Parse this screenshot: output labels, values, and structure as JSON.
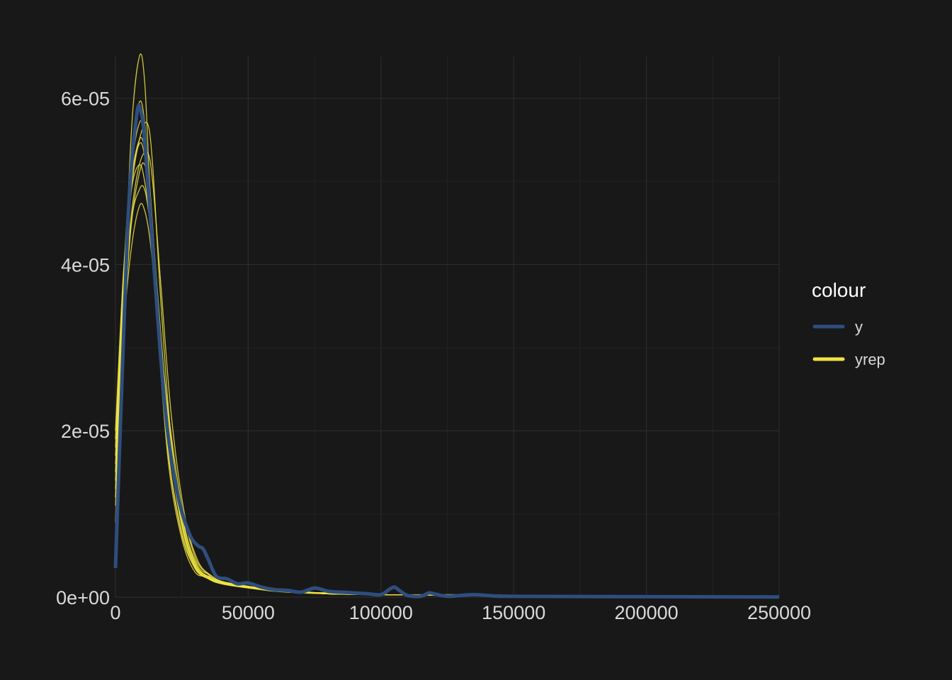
{
  "chart_data": {
    "type": "line",
    "title": "",
    "xlabel": "",
    "ylabel": "",
    "xlim": [
      0,
      250000
    ],
    "ylim": [
      0,
      6.5e-05
    ],
    "grid": true,
    "x_ticks": [
      0,
      50000,
      100000,
      150000,
      200000,
      250000
    ],
    "x_tick_labels": [
      "0",
      "50000",
      "100000",
      "150000",
      "200000",
      "250000"
    ],
    "y_ticks": [
      0,
      2e-05,
      4e-05,
      6e-05
    ],
    "y_tick_labels": [
      "0e+00",
      "2e-05",
      "4e-05",
      "6e-05"
    ],
    "legend": {
      "title": "colour",
      "position": "right",
      "entries": [
        {
          "label": "y",
          "color": "#2e4e7e"
        },
        {
          "label": "yrep",
          "color": "#f0e442"
        }
      ]
    },
    "series": [
      {
        "name": "y",
        "color": "#2e4e7e",
        "x": [
          0,
          2000,
          5000,
          8000,
          9500,
          11000,
          14000,
          17000,
          20000,
          24000,
          28000,
          31000,
          33000,
          35000,
          38000,
          42000,
          46000,
          50000,
          55000,
          60000,
          65000,
          70000,
          75000,
          80000,
          85000,
          90000,
          95000,
          100000,
          103000,
          105000,
          107000,
          110000,
          115000,
          118000,
          120000,
          125000,
          130000,
          135000,
          140000,
          145000,
          150000,
          200000,
          250000
        ],
        "y": [
          3.5e-06,
          2.2e-05,
          4.7e-05,
          5.8e-05,
          5.85e-05,
          5.5e-05,
          4.2e-05,
          2.9e-05,
          1.9e-05,
          1.15e-05,
          7.5e-06,
          6.2e-06,
          5.8e-06,
          4.5e-06,
          2.5e-06,
          2.2e-06,
          1.6e-06,
          1.7e-06,
          1.2e-06,
          9e-07,
          8e-07,
          6e-07,
          1.1e-06,
          7e-07,
          6e-07,
          5e-07,
          4e-07,
          3e-07,
          9e-07,
          1.2e-06,
          8e-07,
          2e-07,
          1e-07,
          5e-07,
          4e-07,
          1e-07,
          2e-07,
          3e-07,
          2e-07,
          1e-07,
          1e-07,
          5e-08,
          2e-08
        ]
      },
      {
        "name": "yrep",
        "color": "#f0e442",
        "x": [
          0,
          3000,
          6000,
          9000,
          11000,
          13000,
          16000,
          20000,
          25000,
          30000,
          35000,
          40000,
          50000,
          60000,
          70000,
          80000,
          100000,
          130000,
          160000,
          200000,
          250000
        ],
        "y": [
          9e-06,
          3.4e-05,
          5.6e-05,
          6.5e-05,
          6.2e-05,
          4.9e-05,
          3.3e-05,
          1.7e-05,
          7.5e-06,
          3.5e-06,
          2.2e-06,
          1.6e-06,
          1.1e-06,
          7e-07,
          5e-07,
          4e-07,
          3e-07,
          2e-07,
          2e-07,
          1e-07,
          1e-07
        ]
      },
      {
        "name": "yrep",
        "color": "#f0e442",
        "x": [
          0,
          3000,
          6000,
          9000,
          11000,
          13000,
          16000,
          20000,
          25000,
          30000,
          35000,
          40000,
          50000,
          60000,
          70000,
          80000,
          100000,
          130000,
          160000,
          200000,
          250000
        ],
        "y": [
          1.5e-05,
          3.8e-05,
          5.3e-05,
          5.95e-05,
          5.7e-05,
          4.8e-05,
          3.2e-05,
          1.6e-05,
          7e-06,
          3e-06,
          2.5e-06,
          1.8e-06,
          1.2e-06,
          8e-07,
          6e-07,
          5e-07,
          3e-07,
          3e-07,
          2e-07,
          2e-07,
          1e-07
        ]
      },
      {
        "name": "yrep",
        "color": "#f0e442",
        "x": [
          0,
          3000,
          6000,
          9000,
          12000,
          14000,
          17000,
          21000,
          26000,
          31000,
          36000,
          40000,
          50000,
          60000,
          70000,
          80000,
          100000,
          130000,
          160000,
          200000,
          250000
        ],
        "y": [
          1.8e-05,
          3.7e-05,
          4.9e-05,
          5.5e-05,
          5.7e-05,
          5.2e-05,
          3.6e-05,
          1.9e-05,
          8.5e-06,
          3.8e-06,
          2.6e-06,
          1.9e-06,
          1.3e-06,
          9e-07,
          6e-07,
          4e-07,
          3e-07,
          2e-07,
          2e-07,
          1e-07,
          1e-07
        ]
      },
      {
        "name": "yrep",
        "color": "#f0e442",
        "x": [
          0,
          3000,
          6000,
          9000,
          11000,
          13000,
          16000,
          20000,
          25000,
          30000,
          35000,
          40000,
          50000,
          60000,
          70000,
          80000,
          100000,
          130000,
          160000,
          200000,
          250000
        ],
        "y": [
          1.3e-05,
          3.3e-05,
          4.5e-05,
          5.1e-05,
          5.2e-05,
          4.8e-05,
          3.6e-05,
          2.1e-05,
          1e-05,
          4.2e-06,
          2.4e-06,
          1.7e-06,
          1.2e-06,
          8e-07,
          7e-07,
          4e-07,
          3e-07,
          2e-07,
          2e-07,
          1e-07,
          1e-07
        ]
      },
      {
        "name": "yrep",
        "color": "#f0e442",
        "x": [
          0,
          3000,
          6000,
          9000,
          11000,
          13000,
          16000,
          20000,
          25000,
          30000,
          35000,
          40000,
          50000,
          60000,
          70000,
          80000,
          100000,
          130000,
          160000,
          200000,
          250000
        ],
        "y": [
          1.6e-05,
          3.2e-05,
          4.2e-05,
          4.7e-05,
          4.65e-05,
          4.3e-05,
          3.4e-05,
          2.2e-05,
          1.1e-05,
          4.8e-06,
          2.7e-06,
          1.8e-06,
          1.3e-06,
          9e-07,
          6e-07,
          5e-07,
          3e-07,
          2e-07,
          2e-07,
          1e-07,
          1e-07
        ]
      },
      {
        "name": "yrep",
        "color": "#f0e442",
        "x": [
          0,
          3000,
          6000,
          9000,
          11000,
          13000,
          16000,
          20000,
          25000,
          30000,
          35000,
          40000,
          50000,
          60000,
          70000,
          80000,
          100000,
          130000,
          160000,
          200000,
          250000
        ],
        "y": [
          1.1e-05,
          3.1e-05,
          4.5e-05,
          4.9e-05,
          4.9e-05,
          4.5e-05,
          3.5e-05,
          2.1e-05,
          9.5e-06,
          4e-06,
          2.4e-06,
          1.7e-06,
          1.2e-06,
          8e-07,
          6e-07,
          4e-07,
          3e-07,
          2e-07,
          2e-07,
          1e-07,
          1e-07
        ]
      },
      {
        "name": "yrep",
        "color": "#f0e442",
        "x": [
          0,
          3000,
          6000,
          9000,
          11000,
          13000,
          16000,
          20000,
          25000,
          30000,
          35000,
          40000,
          50000,
          60000,
          70000,
          80000,
          100000,
          130000,
          160000,
          200000,
          250000
        ],
        "y": [
          1.4e-05,
          3.6e-05,
          5e-05,
          5.5e-05,
          5.4e-05,
          4.9e-05,
          3.5e-05,
          1.9e-05,
          8.5e-06,
          3.6e-06,
          2.3e-06,
          1.7e-06,
          1.2e-06,
          8e-07,
          6e-07,
          4e-07,
          3e-07,
          2e-07,
          2e-07,
          1e-07,
          1e-07
        ]
      },
      {
        "name": "yrep",
        "color": "#f0e442",
        "x": [
          0,
          3000,
          6000,
          9000,
          11000,
          13000,
          16000,
          20000,
          25000,
          30000,
          35000,
          40000,
          50000,
          60000,
          70000,
          80000,
          100000,
          130000,
          160000,
          200000,
          250000
        ],
        "y": [
          2e-05,
          3.9e-05,
          4.9e-05,
          5.2e-05,
          5e-05,
          4.5e-05,
          3.4e-05,
          2e-05,
          9e-06,
          3.8e-06,
          2.5e-06,
          1.8e-06,
          1.2e-06,
          8e-07,
          6e-07,
          4e-07,
          3e-07,
          2e-07,
          2e-07,
          1e-07,
          1e-07
        ]
      },
      {
        "name": "yrep",
        "color": "#f0e442",
        "x": [
          0,
          3000,
          6000,
          9000,
          12000,
          14000,
          17000,
          21000,
          26000,
          31000,
          36000,
          40000,
          50000,
          60000,
          70000,
          80000,
          100000,
          130000,
          160000,
          200000,
          250000
        ],
        "y": [
          1.7e-05,
          3.5e-05,
          4.6e-05,
          5.2e-05,
          5.35e-05,
          5e-05,
          3.8e-05,
          2.2e-05,
          1e-05,
          4.4e-06,
          2.6e-06,
          1.9e-06,
          1.3e-06,
          9e-07,
          6e-07,
          5e-07,
          3e-07,
          2e-07,
          2e-07,
          1e-07,
          1e-07
        ]
      },
      {
        "name": "yrep",
        "color": "#f0e442",
        "x": [
          0,
          3000,
          6000,
          9000,
          11000,
          13000,
          16000,
          20000,
          25000,
          30000,
          35000,
          40000,
          50000,
          60000,
          70000,
          80000,
          100000,
          130000,
          160000,
          200000,
          250000
        ],
        "y": [
          1.2e-05,
          3.4e-05,
          5.1e-05,
          5.7e-05,
          5.55e-05,
          4.7e-05,
          3.2e-05,
          1.7e-05,
          7.8e-06,
          3.4e-06,
          2.2e-06,
          1.6e-06,
          1.1e-06,
          8e-07,
          6e-07,
          4e-07,
          3e-07,
          2e-07,
          2e-07,
          1e-07,
          1e-07
        ]
      },
      {
        "name": "yrep",
        "color": "#f0e442",
        "x": [
          0,
          3000,
          6000,
          9000,
          11000,
          13000,
          16000,
          20000,
          25000,
          30000,
          35000,
          40000,
          50000,
          60000,
          70000,
          80000,
          100000,
          130000,
          160000,
          200000,
          250000
        ],
        "y": [
          1.9e-05,
          3.8e-05,
          5e-05,
          5.45e-05,
          5.3e-05,
          4.7e-05,
          3.4e-05,
          1.9e-05,
          8.8e-06,
          3.7e-06,
          2.4e-06,
          1.7e-06,
          1.2e-06,
          8e-07,
          6e-07,
          4e-07,
          3e-07,
          2e-07,
          2e-07,
          1e-07,
          1e-07
        ]
      }
    ]
  }
}
